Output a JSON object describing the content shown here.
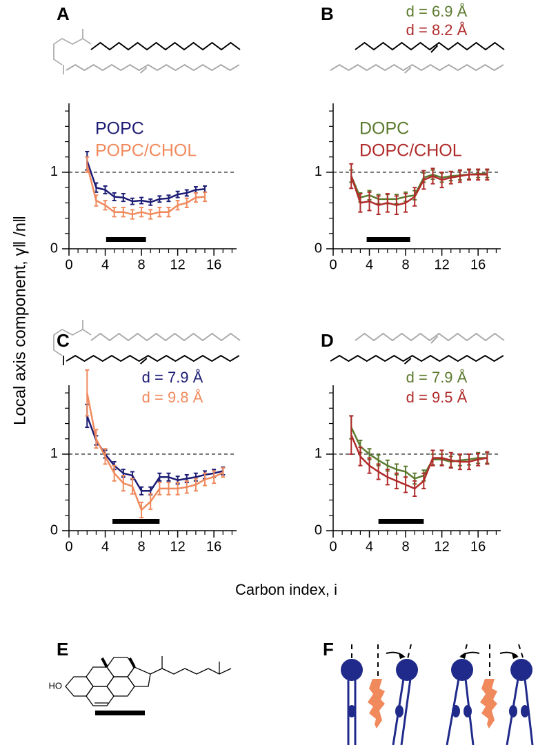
{
  "figure": {
    "ylabel": "Local axis component, γ‖ /n‖",
    "xlabel": "Carbon index, i",
    "panels": [
      "E",
      "F"
    ],
    "sterol_label": "HO"
  },
  "chart_data": [
    {
      "type": "line",
      "panel": "A",
      "x": [
        2,
        3,
        4,
        5,
        6,
        7,
        8,
        9,
        10,
        11,
        12,
        13,
        14,
        15
      ],
      "series": [
        {
          "name": "POPC",
          "color": "#1c1c74",
          "values": [
            1.15,
            0.8,
            0.77,
            0.68,
            0.67,
            0.62,
            0.63,
            0.61,
            0.65,
            0.66,
            0.71,
            0.73,
            0.77,
            0.78
          ],
          "errors": [
            0.12,
            0.06,
            0.05,
            0.05,
            0.05,
            0.04,
            0.04,
            0.04,
            0.04,
            0.04,
            0.04,
            0.04,
            0.04,
            0.04
          ]
        },
        {
          "name": "POPC/CHOL",
          "color": "#f08a5d",
          "values": [
            1.1,
            0.63,
            0.57,
            0.48,
            0.48,
            0.45,
            0.48,
            0.45,
            0.48,
            0.48,
            0.57,
            0.6,
            0.67,
            0.68
          ],
          "errors": [
            0.1,
            0.07,
            0.06,
            0.06,
            0.06,
            0.06,
            0.06,
            0.06,
            0.06,
            0.06,
            0.06,
            0.06,
            0.06,
            0.06
          ]
        }
      ],
      "xlim": [
        0,
        18.5
      ],
      "ylim": [
        0,
        1.9
      ],
      "xticks": [
        0,
        4,
        8,
        12,
        16
      ],
      "yticks": [
        0,
        1
      ],
      "xminorticks": [
        1,
        2,
        3,
        5,
        6,
        7,
        9,
        10,
        11,
        13,
        14,
        15,
        17,
        18
      ],
      "yminorticks": [
        0.2,
        0.4,
        0.6,
        0.8,
        1.2,
        1.4,
        1.6,
        1.8
      ],
      "reference_line": 1,
      "highlight": [
        4.1,
        8.5
      ],
      "legend": "upper left",
      "annotations": []
    },
    {
      "type": "line",
      "panel": "B",
      "x": [
        2,
        3,
        4,
        5,
        6,
        7,
        8,
        9,
        10,
        11,
        12,
        13,
        14,
        15,
        16,
        17
      ],
      "series": [
        {
          "name": "DOPC",
          "color": "#5b7a2e",
          "values": [
            0.95,
            0.67,
            0.7,
            0.65,
            0.65,
            0.65,
            0.68,
            0.7,
            0.93,
            0.97,
            0.93,
            0.95,
            0.96,
            0.97,
            0.98,
            0.98
          ],
          "errors": [
            0.08,
            0.06,
            0.06,
            0.06,
            0.06,
            0.06,
            0.06,
            0.06,
            0.06,
            0.06,
            0.06,
            0.06,
            0.06,
            0.06,
            0.05,
            0.05
          ]
        },
        {
          "name": "DOPC/CHOL",
          "color": "#b02a2a",
          "values": [
            0.95,
            0.6,
            0.62,
            0.57,
            0.6,
            0.57,
            0.6,
            0.68,
            0.9,
            0.95,
            0.9,
            0.93,
            0.95,
            0.97,
            0.97,
            0.97
          ],
          "errors": [
            0.16,
            0.12,
            0.12,
            0.12,
            0.12,
            0.12,
            0.12,
            0.12,
            0.12,
            0.1,
            0.1,
            0.08,
            0.08,
            0.07,
            0.07,
            0.07
          ]
        }
      ],
      "xlim": [
        0,
        18.5
      ],
      "ylim": [
        0,
        1.9
      ],
      "xticks": [
        0,
        4,
        8,
        12,
        16
      ],
      "yticks": [
        0,
        1
      ],
      "xminorticks": [
        1,
        2,
        3,
        5,
        6,
        7,
        9,
        10,
        11,
        13,
        14,
        15,
        17,
        18
      ],
      "yminorticks": [
        0.2,
        0.4,
        0.6,
        0.8,
        1.2,
        1.4,
        1.6,
        1.8
      ],
      "reference_line": 1,
      "highlight": [
        3.7,
        8.5
      ],
      "legend": "upper left",
      "annotations": [
        {
          "text": "d = 6.9 Å",
          "color": "#5b7a2e"
        },
        {
          "text": "d = 8.2 Å",
          "color": "#b02a2a"
        }
      ]
    },
    {
      "type": "line",
      "panel": "C",
      "x": [
        2,
        3,
        4,
        5,
        6,
        7,
        8,
        9,
        10,
        11,
        12,
        13,
        14,
        15,
        16,
        17
      ],
      "series": [
        {
          "color": "#1c1c74",
          "values": [
            1.5,
            1.18,
            1.0,
            0.85,
            0.75,
            0.72,
            0.52,
            0.52,
            0.7,
            0.7,
            0.66,
            0.68,
            0.7,
            0.73,
            0.75,
            0.78
          ],
          "errors": [
            0.15,
            0.06,
            0.05,
            0.05,
            0.05,
            0.05,
            0.05,
            0.05,
            0.05,
            0.05,
            0.05,
            0.05,
            0.05,
            0.05,
            0.05,
            0.05
          ]
        },
        {
          "color": "#f08a5d",
          "values": [
            1.8,
            1.2,
            0.97,
            0.75,
            0.62,
            0.58,
            0.27,
            0.38,
            0.55,
            0.55,
            0.55,
            0.57,
            0.6,
            0.67,
            0.7,
            0.76
          ],
          "errors": [
            0.3,
            0.12,
            0.1,
            0.1,
            0.1,
            0.1,
            0.1,
            0.1,
            0.08,
            0.08,
            0.08,
            0.08,
            0.08,
            0.08,
            0.08,
            0.06
          ]
        }
      ],
      "xlim": [
        0,
        18.5
      ],
      "ylim": [
        0,
        1.9
      ],
      "xticks": [
        0,
        4,
        8,
        12,
        16
      ],
      "yticks": [
        0,
        1
      ],
      "xminorticks": [
        1,
        2,
        3,
        5,
        6,
        7,
        9,
        10,
        11,
        13,
        14,
        15,
        17,
        18
      ],
      "yminorticks": [
        0.2,
        0.4,
        0.6,
        0.8,
        1.2,
        1.4,
        1.6,
        1.8
      ],
      "reference_line": 1,
      "highlight": [
        4.8,
        10
      ],
      "annotations": [
        {
          "text": "d = 7.9 Å",
          "color": "#1c1c74"
        },
        {
          "text": "d = 9.8 Å",
          "color": "#f08a5d"
        }
      ]
    },
    {
      "type": "line",
      "panel": "D",
      "x": [
        2,
        3,
        4,
        5,
        6,
        7,
        8,
        9,
        10,
        11,
        12,
        13,
        14,
        15,
        16,
        17
      ],
      "series": [
        {
          "color": "#5b7a2e",
          "values": [
            1.35,
            1.1,
            1.0,
            0.92,
            0.85,
            0.8,
            0.77,
            0.68,
            0.72,
            0.93,
            0.93,
            0.9,
            0.92,
            0.93,
            0.95,
            0.95
          ],
          "errors": [
            0.15,
            0.08,
            0.07,
            0.07,
            0.07,
            0.07,
            0.07,
            0.07,
            0.07,
            0.07,
            0.07,
            0.07,
            0.07,
            0.07,
            0.07,
            0.07
          ]
        },
        {
          "color": "#b02a2a",
          "values": [
            1.25,
            0.97,
            0.85,
            0.77,
            0.7,
            0.65,
            0.6,
            0.55,
            0.65,
            0.95,
            0.95,
            0.92,
            0.9,
            0.9,
            0.93,
            0.95
          ],
          "errors": [
            0.25,
            0.12,
            0.1,
            0.1,
            0.1,
            0.1,
            0.1,
            0.1,
            0.1,
            0.1,
            0.1,
            0.1,
            0.1,
            0.1,
            0.08,
            0.08
          ]
        }
      ],
      "xlim": [
        0,
        18.5
      ],
      "ylim": [
        0,
        1.9
      ],
      "xticks": [
        0,
        4,
        8,
        12,
        16
      ],
      "yticks": [
        0,
        1
      ],
      "xminorticks": [
        1,
        2,
        3,
        5,
        6,
        7,
        9,
        10,
        11,
        13,
        14,
        15,
        17,
        18
      ],
      "yminorticks": [
        0.2,
        0.4,
        0.6,
        0.8,
        1.2,
        1.4,
        1.6,
        1.8
      ],
      "reference_line": 1,
      "highlight": [
        5,
        10
      ],
      "annotations": [
        {
          "text": "d = 7.9 Å",
          "color": "#5b7a2e"
        },
        {
          "text": "d = 9.5 Å",
          "color": "#b02a2a"
        }
      ]
    }
  ]
}
